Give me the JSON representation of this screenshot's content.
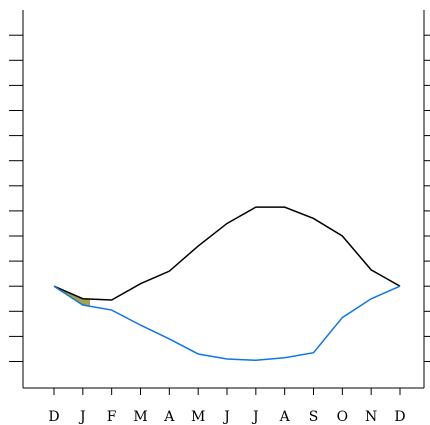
{
  "chart_data": {
    "type": "line",
    "categories": [
      "D",
      "J",
      "F",
      "M",
      "A",
      "M",
      "J",
      "J",
      "A",
      "S",
      "O",
      "N",
      "D"
    ],
    "series": [
      {
        "color": "#000000",
        "values": [
          4.0,
          3.5,
          3.45,
          4.1,
          4.6,
          5.6,
          6.5,
          7.15,
          7.15,
          6.7,
          6.0,
          4.65,
          4.0
        ]
      },
      {
        "color": "#1177dd",
        "values": [
          4.0,
          3.25,
          3.05,
          2.45,
          1.9,
          1.3,
          1.1,
          1.05,
          1.15,
          1.35,
          2.75,
          3.5,
          4.0
        ]
      }
    ],
    "shaded_region": {
      "color": "#a9a24a",
      "between": "upper-and-lower-where-lower-exceeds-upper"
    },
    "ylim": [
      0,
      15
    ],
    "y_ticks": [
      1,
      2,
      3,
      4,
      5,
      6,
      7,
      8,
      9,
      10,
      11,
      12,
      13,
      14
    ],
    "grid": false,
    "right_axis_ticks": true
  }
}
